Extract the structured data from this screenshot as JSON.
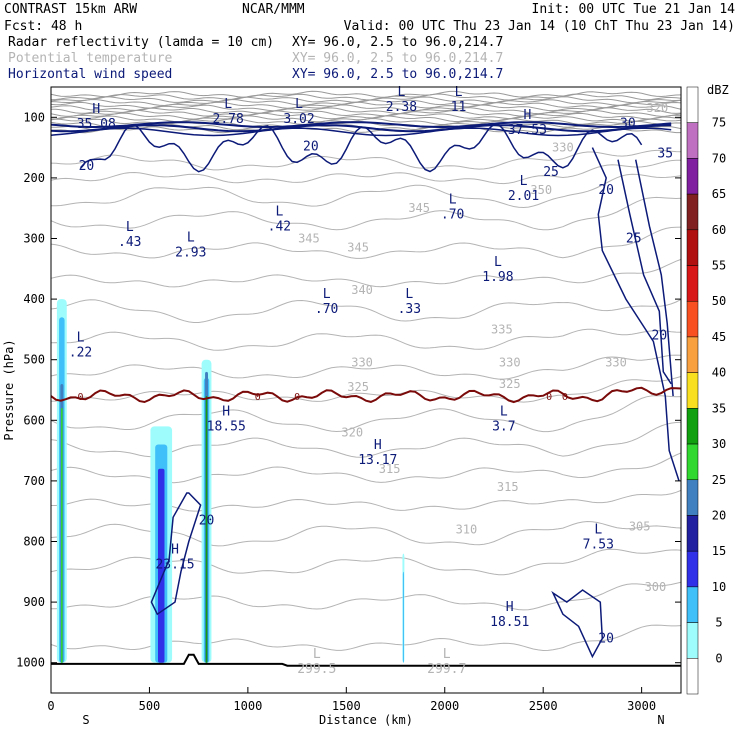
{
  "header": {
    "model": "CONTRAST 15km ARW",
    "center": "NCAR/MMM",
    "init": "Init: 00 UTC Tue 21 Jan 14",
    "fcst": "Fcst:    48 h",
    "valid": "Valid: 00 UTC Thu 23 Jan 14 (10 ChT Thu 23 Jan 14)",
    "fields": [
      {
        "name": "Radar reflectivity (lamda = 10 cm)",
        "xy": "XY=  96.0,  2.5 to  96.0,214.7",
        "color": "#000000"
      },
      {
        "name": "Potential temperature",
        "xy": "XY=  96.0,  2.5 to  96.0,214.7",
        "color": "#b4b4b4"
      },
      {
        "name": "Horizontal wind speed",
        "xy": "XY=  96.0,  2.5 to  96.0,214.7",
        "color": "#0c1a78"
      }
    ]
  },
  "chart_data": {
    "type": "cross-section",
    "xlabel": "Distance (km)",
    "ylabel": "Pressure (hPa)",
    "xlim": [
      0,
      3200
    ],
    "ylim": [
      1050,
      50
    ],
    "x_ticks": [
      0,
      500,
      1000,
      1500,
      2000,
      2500,
      3000
    ],
    "y_ticks": [
      100,
      200,
      300,
      400,
      500,
      600,
      700,
      800,
      900,
      1000
    ],
    "x_end_labels": {
      "left": "S",
      "right": "N"
    },
    "colorbar": {
      "unit": "dBZ",
      "levels": [
        0,
        5,
        10,
        15,
        20,
        25,
        30,
        35,
        40,
        45,
        50,
        55,
        60,
        65,
        70,
        75
      ],
      "colors": [
        "#ffffff",
        "#9ffcfc",
        "#40c0f8",
        "#3030e8",
        "#2020a0",
        "#4080c0",
        "#30d830",
        "#10a010",
        "#f8e020",
        "#f8a040",
        "#f85020",
        "#d81818",
        "#b01010",
        "#802020",
        "#8020a0",
        "#c070c0",
        "#ffffff"
      ]
    },
    "theta_labels": [
      {
        "value": "345",
        "x": 1310,
        "p": 300
      },
      {
        "value": "345",
        "x": 1560,
        "p": 315
      },
      {
        "value": "345",
        "x": 1870,
        "p": 250
      },
      {
        "value": "340",
        "x": 1580,
        "p": 385
      },
      {
        "value": "335",
        "x": 2290,
        "p": 450
      },
      {
        "value": "330",
        "x": 1580,
        "p": 505
      },
      {
        "value": "330",
        "x": 2330,
        "p": 505
      },
      {
        "value": "330",
        "x": 2870,
        "p": 505
      },
      {
        "value": "325",
        "x": 1560,
        "p": 545
      },
      {
        "value": "325",
        "x": 2330,
        "p": 540
      },
      {
        "value": "320",
        "x": 1530,
        "p": 620
      },
      {
        "value": "315",
        "x": 1720,
        "p": 680
      },
      {
        "value": "315",
        "x": 2320,
        "p": 710
      },
      {
        "value": "310",
        "x": 2110,
        "p": 780
      },
      {
        "value": "305",
        "x": 2990,
        "p": 775
      },
      {
        "value": "300",
        "x": 3070,
        "p": 875
      },
      {
        "value": "330",
        "x": 2600,
        "p": 150
      },
      {
        "value": "350",
        "x": 2490,
        "p": 220
      },
      {
        "value": "320",
        "x": 3080,
        "p": 85
      }
    ],
    "wind_labels": [
      {
        "value": "20",
        "x": 180,
        "p": 180
      },
      {
        "value": "20",
        "x": 1320,
        "p": 148
      },
      {
        "value": "20",
        "x": 2820,
        "p": 220
      },
      {
        "value": "25",
        "x": 2540,
        "p": 190
      },
      {
        "value": "25",
        "x": 2960,
        "p": 300
      },
      {
        "value": "30",
        "x": 2930,
        "p": 110
      },
      {
        "value": "35",
        "x": 3120,
        "p": 160
      },
      {
        "value": "20",
        "x": 3090,
        "p": 460
      },
      {
        "value": "20",
        "x": 790,
        "p": 765
      },
      {
        "value": "20",
        "x": 2820,
        "p": 960
      }
    ],
    "extrema": [
      {
        "kind": "H",
        "value": "35.08",
        "x": 230,
        "p": 93
      },
      {
        "kind": "L",
        "value": "2.78",
        "x": 900,
        "p": 85
      },
      {
        "kind": "L",
        "value": "3.02",
        "x": 1260,
        "p": 85
      },
      {
        "kind": "L",
        "value": "2.38",
        "x": 1780,
        "p": 65
      },
      {
        "kind": "L",
        "value": "11",
        "x": 2070,
        "p": 65
      },
      {
        "kind": "H",
        "value": "37.53",
        "x": 2420,
        "p": 103
      },
      {
        "kind": "L",
        "value": ".42",
        "x": 1160,
        "p": 262
      },
      {
        "kind": "L",
        "value": ".70",
        "x": 2040,
        "p": 242
      },
      {
        "kind": "L",
        "value": "2.01",
        "x": 2400,
        "p": 212
      },
      {
        "kind": "L",
        "value": ".43",
        "x": 400,
        "p": 288
      },
      {
        "kind": "L",
        "value": "2.93",
        "x": 710,
        "p": 305
      },
      {
        "kind": "L",
        "value": "1.98",
        "x": 2270,
        "p": 345
      },
      {
        "kind": "L",
        "value": ".70",
        "x": 1400,
        "p": 398
      },
      {
        "kind": "L",
        "value": ".33",
        "x": 1820,
        "p": 398
      },
      {
        "kind": "L",
        "value": ".22",
        "x": 150,
        "p": 470
      },
      {
        "kind": "H",
        "value": "18.55",
        "x": 890,
        "p": 592
      },
      {
        "kind": "L",
        "value": "3.7",
        "x": 2300,
        "p": 592
      },
      {
        "kind": "H",
        "value": "13.17",
        "x": 1660,
        "p": 647
      },
      {
        "kind": "L",
        "value": "7.53",
        "x": 2780,
        "p": 787
      },
      {
        "kind": "H",
        "value": "23.15",
        "x": 630,
        "p": 820
      },
      {
        "kind": "H",
        "value": "18.51",
        "x": 2330,
        "p": 915
      },
      {
        "kind": "L",
        "value": "299.5",
        "x": 1350,
        "p": 992
      },
      {
        "kind": "L",
        "value": "299.7",
        "x": 2010,
        "p": 992
      }
    ],
    "freezing_level": {
      "value": "0",
      "pressure_mean": 560
    },
    "reflectivity_columns": [
      {
        "x_center": 55,
        "half_width": 25,
        "top_p": 400,
        "core_top_p": 540,
        "max_dbz": 30
      },
      {
        "x_center": 560,
        "half_width": 55,
        "top_p": 610,
        "core_top_p": 680,
        "max_dbz": 15
      },
      {
        "x_center": 790,
        "half_width": 25,
        "top_p": 500,
        "core_top_p": 520,
        "max_dbz": 35
      },
      {
        "x_center": 1790,
        "half_width": 5,
        "top_p": 820,
        "core_top_p": 900,
        "max_dbz": 10
      }
    ]
  }
}
